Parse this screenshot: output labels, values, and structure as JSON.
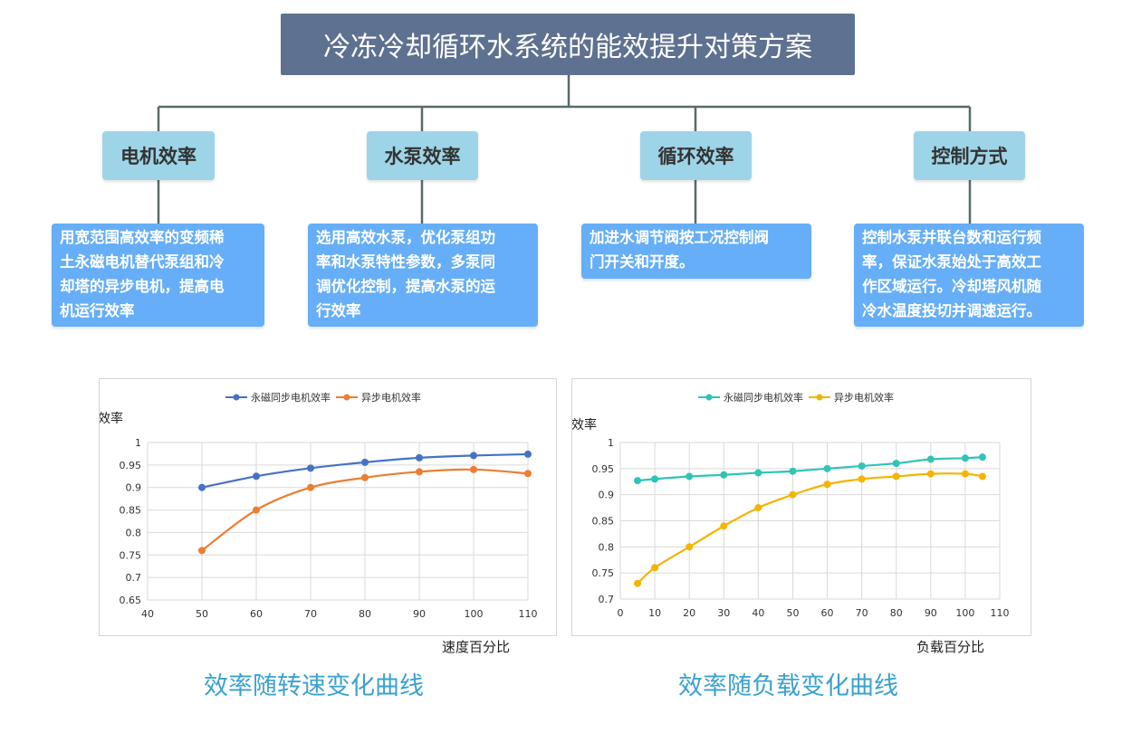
{
  "title": "冷冻冷却循环水系统的能效提升对策方案",
  "categories": [
    {
      "label": "电机效率",
      "description": [
        "用宽范围高效率的变频稀",
        "土永磁电机替代泵组和冷",
        "却塔的异步电机，提高电",
        "机运行效率"
      ]
    },
    {
      "label": "水泵效率",
      "description": [
        "选用高效水泵，优化泵组功",
        "率和水泵特性参数，多泵同",
        "调优化控制，提高水泵的运",
        "行效率"
      ]
    },
    {
      "label": "循环效率",
      "description": [
        "加进水调节阀按工况控制阀",
        "门开关和开度。"
      ]
    },
    {
      "label": "控制方式",
      "description": [
        "控制水泵并联台数和运行频",
        "率，保证水泵始处于高效工",
        "作区域运行。冷却塔风机随",
        "冷水温度投切并调速运行。"
      ]
    }
  ],
  "chart_data": [
    {
      "type": "line",
      "ylabel": "效率",
      "xlabel": "速度百分比",
      "xlim": [
        40,
        110
      ],
      "ylim": [
        0.65,
        1
      ],
      "xticks": [
        40,
        50,
        60,
        70,
        80,
        90,
        100,
        110
      ],
      "yticks": [
        0.65,
        0.7,
        0.75,
        0.8,
        0.85,
        0.9,
        0.95,
        1
      ],
      "grid": true,
      "legend": "top-center",
      "series": [
        {
          "name": "永磁同步电机效率",
          "color": "#4472c4",
          "x": [
            50,
            60,
            70,
            80,
            90,
            100,
            110
          ],
          "y": [
            0.9,
            0.925,
            0.943,
            0.956,
            0.966,
            0.971,
            0.974
          ]
        },
        {
          "name": "异步电机效率",
          "color": "#ed7d31",
          "x": [
            50,
            60,
            70,
            80,
            90,
            100,
            110
          ],
          "y": [
            0.76,
            0.85,
            0.9,
            0.922,
            0.935,
            0.94,
            0.931
          ]
        }
      ],
      "caption": "效率随转速变化曲线"
    },
    {
      "type": "line",
      "ylabel": "效率",
      "xlabel": "负载百分比",
      "xlim": [
        0,
        110
      ],
      "ylim": [
        0.7,
        1
      ],
      "xticks": [
        0,
        10,
        20,
        30,
        40,
        50,
        60,
        70,
        80,
        90,
        100,
        110
      ],
      "yticks": [
        0.7,
        0.75,
        0.8,
        0.85,
        0.9,
        0.95,
        1
      ],
      "grid": true,
      "legend": "top-center",
      "series": [
        {
          "name": "永磁同步电机效率",
          "color": "#2ec4b6",
          "x": [
            5,
            10,
            20,
            30,
            40,
            50,
            60,
            70,
            80,
            90,
            100,
            105
          ],
          "y": [
            0.927,
            0.93,
            0.935,
            0.938,
            0.942,
            0.945,
            0.95,
            0.955,
            0.96,
            0.968,
            0.97,
            0.972
          ]
        },
        {
          "name": "异步电机效率",
          "color": "#f4b400",
          "x": [
            5,
            10,
            20,
            30,
            40,
            50,
            60,
            70,
            80,
            90,
            100,
            105
          ],
          "y": [
            0.73,
            0.76,
            0.8,
            0.84,
            0.875,
            0.9,
            0.92,
            0.93,
            0.935,
            0.94,
            0.94,
            0.935
          ]
        }
      ],
      "caption": "效率随负载变化曲线"
    }
  ]
}
